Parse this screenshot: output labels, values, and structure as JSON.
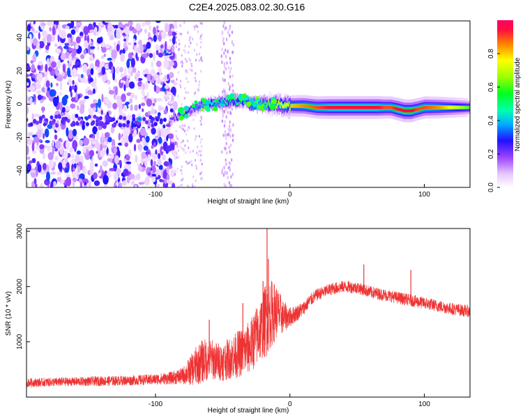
{
  "figure": {
    "title": "C2E4.2025.083.02.30.G16"
  },
  "chart_data": [
    {
      "type": "heatmap",
      "title": "C2E4.2025.083.02.30.G16",
      "xlabel": "Height of straight line (km)",
      "ylabel": "Frequency (Hz)",
      "xlim": [
        -196,
        134
      ],
      "ylim": [
        -50,
        50
      ],
      "xticks": [
        -100,
        0,
        100
      ],
      "xtick_labels": [
        "-100",
        "0",
        "100"
      ],
      "yticks": [
        -40,
        -20,
        0,
        20,
        40
      ],
      "ytick_labels": [
        "-40",
        "-20",
        "0",
        "20",
        "40"
      ],
      "grid": false,
      "colorbar": {
        "label": "Normalized spectral amplitude",
        "range": [
          0,
          1
        ],
        "ticks": [
          0.0,
          0.2,
          0.4,
          0.6,
          0.8
        ],
        "tick_labels": [
          "0.0",
          "0.2",
          "0.4",
          "0.6",
          "0.8"
        ],
        "colormap": "rainbow"
      },
      "ridge": {
        "x": [
          -90,
          -85,
          -80,
          -75,
          -70,
          -65,
          -60,
          -55,
          -50,
          -45,
          -40,
          -35,
          -30,
          -25,
          -20,
          -15,
          -10,
          -5,
          0,
          10,
          20,
          30,
          40,
          50,
          60,
          65,
          70,
          75,
          80,
          85,
          90,
          95,
          100,
          110,
          120,
          134
        ],
        "frequency": [
          -10,
          -8,
          -6,
          -4,
          -2,
          0,
          0,
          1,
          1,
          2,
          2,
          2,
          0,
          0,
          0,
          0,
          0,
          -1,
          -1,
          -1,
          -2,
          -2,
          -2,
          -2,
          -2,
          -2,
          -2,
          -2,
          -3,
          -4,
          -4,
          -3,
          -2,
          -2,
          -2,
          -2
        ],
        "amplitude": [
          0.2,
          0.25,
          0.3,
          0.3,
          0.35,
          0.4,
          0.45,
          0.45,
          0.45,
          0.5,
          0.5,
          0.5,
          0.55,
          0.6,
          0.6,
          0.65,
          0.7,
          0.75,
          0.8,
          0.85,
          0.9,
          0.95,
          0.95,
          0.95,
          0.95,
          0.95,
          0.9,
          0.9,
          0.95,
          0.95,
          0.95,
          0.9,
          0.9,
          0.85,
          0.75,
          0.6
        ]
      },
      "noise_region_x": [
        -196,
        -85
      ],
      "noise_amplitude": 0.12
    },
    {
      "type": "line",
      "xlabel": "Height of straight line (km)",
      "ylabel": "SNR (10 * v/v)",
      "xlim": [
        -196,
        134
      ],
      "ylim": [
        0,
        3050
      ],
      "xticks": [
        -100,
        0,
        100
      ],
      "xtick_labels": [
        "-100",
        "0",
        "100"
      ],
      "yticks": [
        1000,
        2000,
        3000
      ],
      "ytick_labels": [
        "1000",
        "2000",
        "3000"
      ],
      "grid": false,
      "series": [
        {
          "color": "#ee3333",
          "x": [
            -196,
            -180,
            -160,
            -140,
            -120,
            -100,
            -90,
            -80,
            -75,
            -70,
            -65,
            -60,
            -55,
            -50,
            -45,
            -40,
            -35,
            -30,
            -25,
            -20,
            -18,
            -15,
            -10,
            -5,
            0,
            5,
            10,
            15,
            20,
            30,
            40,
            50,
            60,
            70,
            80,
            90,
            100,
            110,
            120,
            134
          ],
          "values": [
            260,
            270,
            280,
            290,
            300,
            320,
            340,
            380,
            460,
            560,
            650,
            700,
            650,
            640,
            700,
            760,
            820,
            900,
            1100,
            1300,
            1400,
            1500,
            1550,
            1450,
            1450,
            1520,
            1600,
            1750,
            1850,
            1950,
            2000,
            1980,
            1900,
            1850,
            1800,
            1750,
            1700,
            1650,
            1600,
            1550
          ],
          "noise": [
            80,
            80,
            80,
            90,
            90,
            100,
            110,
            150,
            250,
            350,
            400,
            380,
            350,
            350,
            380,
            420,
            450,
            480,
            550,
            600,
            700,
            650,
            500,
            300,
            180,
            150,
            130,
            120,
            110,
            110,
            110,
            110,
            110,
            110,
            110,
            110,
            110,
            110,
            110,
            110
          ],
          "spikes": [
            {
              "x": -17,
              "y": 3050
            },
            {
              "x": -16,
              "y": 2500
            },
            {
              "x": -60,
              "y": 1400
            },
            {
              "x": -35,
              "y": 1700
            },
            {
              "x": -20,
              "y": 2100
            },
            {
              "x": 55,
              "y": 2400
            },
            {
              "x": 90,
              "y": 2300
            }
          ]
        }
      ]
    }
  ]
}
